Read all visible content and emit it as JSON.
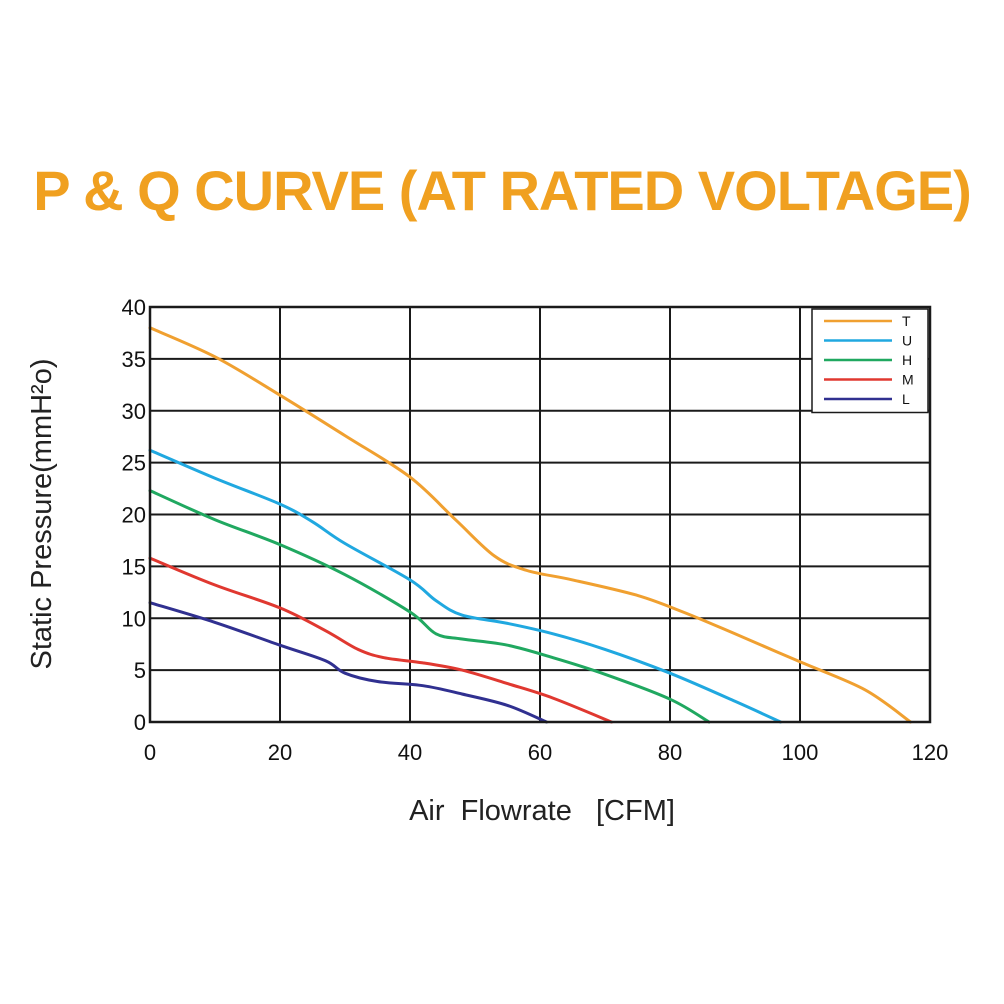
{
  "chart_data": {
    "type": "line",
    "title": "P & Q CURVE (AT RATED VOLTAGE)",
    "title_color": "#f0a020",
    "xlabel": "Air  Flowrate   [CFM]",
    "ylabel": "Static Pressure(mmH²o)",
    "xlim": [
      0,
      120
    ],
    "ylim": [
      0,
      40
    ],
    "x_ticks": [
      0,
      20,
      40,
      60,
      80,
      100,
      120
    ],
    "y_ticks": [
      0,
      5,
      10,
      15,
      20,
      25,
      30,
      35,
      40
    ],
    "grid": true,
    "legend_position": "top-right",
    "series": [
      {
        "name": "T",
        "color": "#f0a030",
        "points": [
          [
            0,
            38
          ],
          [
            10,
            35.2
          ],
          [
            20,
            31.5
          ],
          [
            30,
            27.6
          ],
          [
            40,
            23.6
          ],
          [
            47,
            19.5
          ],
          [
            53,
            16
          ],
          [
            58,
            14.6
          ],
          [
            65,
            13.7
          ],
          [
            75,
            12.2
          ],
          [
            82,
            10.6
          ],
          [
            90,
            8.5
          ],
          [
            100,
            5.8
          ],
          [
            110,
            3.1
          ],
          [
            117,
            0
          ]
        ]
      },
      {
        "name": "U",
        "color": "#20a8e0",
        "points": [
          [
            0,
            26.2
          ],
          [
            10,
            23.5
          ],
          [
            20,
            21
          ],
          [
            25,
            19.3
          ],
          [
            30,
            17.2
          ],
          [
            40,
            13.7
          ],
          [
            44,
            11.7
          ],
          [
            48,
            10.3
          ],
          [
            55,
            9.5
          ],
          [
            62,
            8.5
          ],
          [
            70,
            7
          ],
          [
            80,
            4.7
          ],
          [
            90,
            2
          ],
          [
            97,
            0
          ]
        ]
      },
      {
        "name": "H",
        "color": "#20a860",
        "points": [
          [
            0,
            22.3
          ],
          [
            10,
            19.5
          ],
          [
            20,
            17.1
          ],
          [
            30,
            14.2
          ],
          [
            40,
            10.6
          ],
          [
            44,
            8.5
          ],
          [
            48,
            8
          ],
          [
            55,
            7.4
          ],
          [
            62,
            6.2
          ],
          [
            70,
            4.6
          ],
          [
            80,
            2.2
          ],
          [
            86,
            0
          ]
        ]
      },
      {
        "name": "M",
        "color": "#e03830",
        "points": [
          [
            0,
            15.8
          ],
          [
            10,
            13.2
          ],
          [
            20,
            11
          ],
          [
            27,
            8.8
          ],
          [
            32,
            7
          ],
          [
            36,
            6.2
          ],
          [
            42,
            5.7
          ],
          [
            48,
            5
          ],
          [
            55,
            3.7
          ],
          [
            62,
            2.3
          ],
          [
            71,
            0
          ]
        ]
      },
      {
        "name": "L",
        "color": "#303090",
        "points": [
          [
            0,
            11.5
          ],
          [
            10,
            9.6
          ],
          [
            20,
            7.4
          ],
          [
            27,
            5.9
          ],
          [
            30,
            4.7
          ],
          [
            35,
            3.9
          ],
          [
            42,
            3.5
          ],
          [
            48,
            2.7
          ],
          [
            55,
            1.6
          ],
          [
            61,
            0
          ]
        ]
      }
    ]
  }
}
